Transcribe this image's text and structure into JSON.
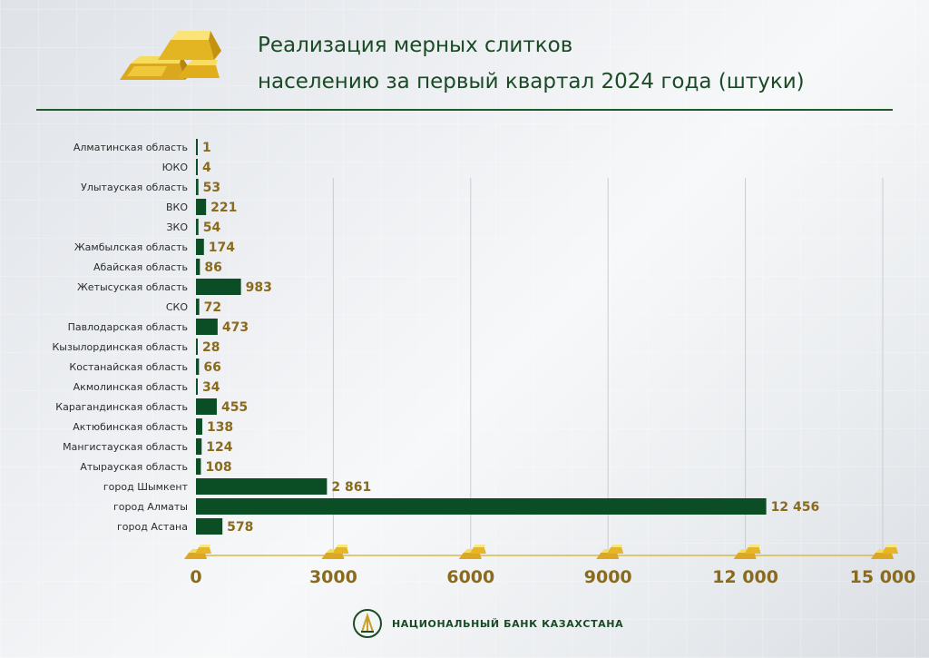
{
  "title": {
    "line1": "Реализация мерных слитков",
    "line2": "населению за первый квартал 2024 года (штуки)"
  },
  "footer": {
    "bank_name": "НАЦИОНАЛЬНЫЙ БАНК КАЗАХСТАНА"
  },
  "colors": {
    "bar": "#0b4d24",
    "value_label": "#8a6a1c",
    "axis_label": "#8a6a1c",
    "title": "#1a4b26",
    "gold": "#e8c32e"
  },
  "icons": {
    "header": "gold-bars-icon",
    "axis": "gold-bar-icon",
    "footer": "national-bank-emblem-icon"
  },
  "chart_data": {
    "type": "bar",
    "orientation": "horizontal",
    "categories": [
      "Алматинская область",
      "ЮКО",
      "Улытауская  область",
      "ВКО",
      "ЗКО",
      "Жамбылская  область",
      "Абайская  область",
      "Жетысуская  область",
      "СКО",
      "Павлодарская область",
      "Кызылординская область",
      "Костанайская область",
      "Акмолинская область",
      "Карагандинская область",
      "Актюбинская область",
      "Мангистауская область",
      "Атырауская область",
      "город Шымкент",
      "город Алматы",
      "город Астана"
    ],
    "values": [
      1,
      4,
      53,
      221,
      54,
      174,
      86,
      983,
      72,
      473,
      28,
      66,
      34,
      455,
      138,
      124,
      108,
      2861,
      12456,
      578
    ],
    "value_labels": [
      "1",
      "4",
      "53",
      "221",
      "54",
      "174",
      "86",
      "983",
      "72",
      "473",
      "28",
      "66",
      "34",
      "455",
      "138",
      "124",
      "108",
      "2 861",
      "12 456",
      "578"
    ],
    "xlim": [
      0,
      15000
    ],
    "xticks": [
      0,
      3000,
      6000,
      9000,
      12000,
      15000
    ],
    "xtick_labels": [
      "0",
      "3000",
      "6000",
      "9000",
      "12 000",
      "15 000"
    ],
    "grid": true
  }
}
